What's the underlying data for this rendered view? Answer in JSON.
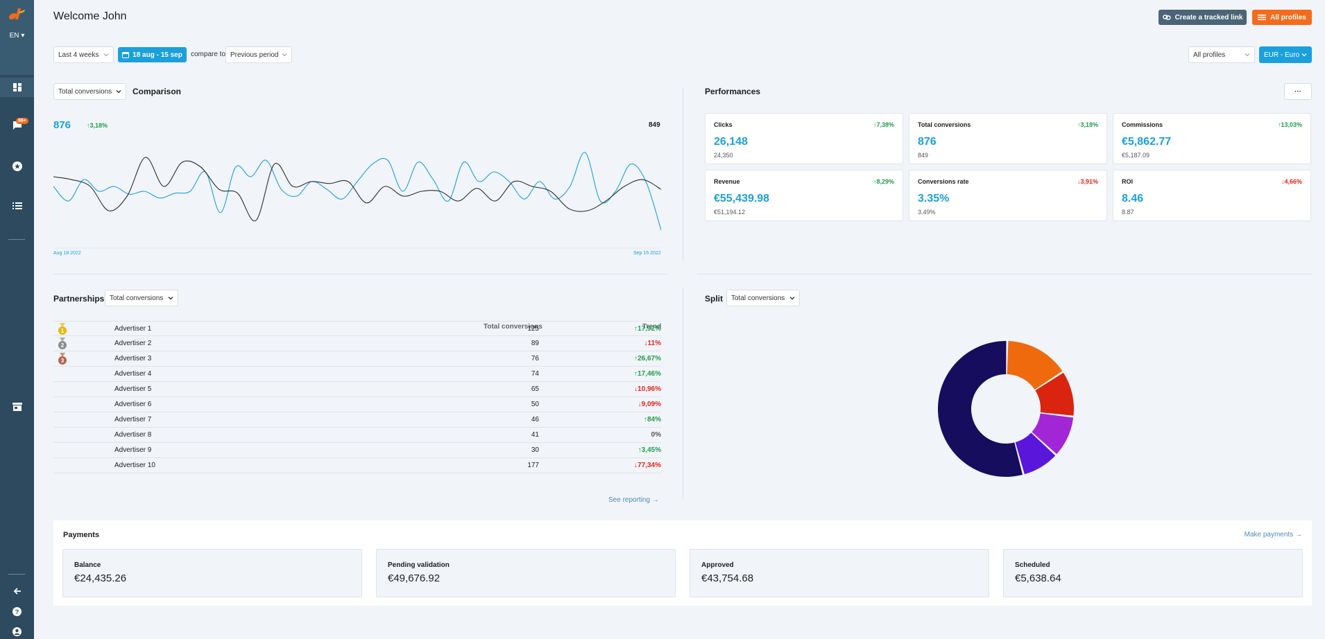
{
  "header": {
    "title": "Welcome John",
    "create_link_label": "Create a tracked link",
    "all_profiles_label": "All profiles"
  },
  "sidebar": {
    "lang": "EN",
    "badge": "99+"
  },
  "filters": {
    "period": "Last 4 weeks",
    "date_range": "18 aug - 15 sep",
    "compare_to_label": "compare to",
    "compare": "Previous period",
    "profiles": "All profiles",
    "currency": "EUR - Euro"
  },
  "comparison": {
    "metric": "Total conversions",
    "title": "Comparison",
    "current_value": "876",
    "current_trend": "↑3,18%",
    "previous_value": "849",
    "x_start": "Aug 18 2022",
    "x_end": "Sep 15 2022"
  },
  "chart_data": {
    "type": "line",
    "series": [
      {
        "color": "#1aa0dc",
        "values": [
          0.55,
          0.4,
          0.62,
          0.5,
          0.55,
          0.47,
          0.5,
          0.43,
          0.48,
          0.5,
          0.7,
          0.28,
          0.75,
          0.65,
          0.82,
          0.52,
          0.45,
          0.6,
          0.52,
          0.42,
          0.6,
          0.78,
          0.82,
          0.5,
          0.8,
          0.62,
          0.4,
          0.8,
          0.6,
          0.7,
          0.6,
          0.42,
          0.6,
          0.42,
          0.55,
          0.9,
          0.4,
          0.5,
          0.78,
          0.6,
          0.1
        ]
      },
      {
        "color": "#2d2d2d",
        "values": [
          0.65,
          0.62,
          0.55,
          0.3,
          0.45,
          0.85,
          0.55,
          0.8,
          0.75,
          0.52,
          0.48,
          0.2,
          0.78,
          0.55,
          0.6,
          0.58,
          0.6,
          0.38,
          0.55,
          0.45,
          0.5,
          0.5,
          0.4,
          0.53,
          0.4,
          0.6,
          0.55,
          0.5,
          0.32,
          0.3,
          0.4,
          0.55,
          0.62,
          0.52
        ]
      }
    ]
  },
  "performances": {
    "title": "Performances",
    "more_label": "···",
    "cards": [
      {
        "title": "Clicks",
        "trend": "↑7,38%",
        "dir": "up",
        "value": "26,148",
        "prev": "24,350"
      },
      {
        "title": "Total conversions",
        "trend": "↑3,18%",
        "dir": "up",
        "value": "876",
        "prev": "849"
      },
      {
        "title": "Commissions",
        "trend": "↑13,03%",
        "dir": "up",
        "value": "€5,862.77",
        "prev": "€5,187.09"
      },
      {
        "title": "Revenue",
        "trend": "↑8,29%",
        "dir": "up",
        "value": "€55,439.98",
        "prev": "€51,194.12"
      },
      {
        "title": "Conversions rate",
        "trend": "↓3,91%",
        "dir": "down",
        "value": "3.35%",
        "prev": "3.49%"
      },
      {
        "title": "ROI",
        "trend": "↓4,66%",
        "dir": "down",
        "value": "8.46",
        "prev": "8.87"
      }
    ]
  },
  "partnerships": {
    "title": "Partnerships",
    "metric": "Total conversions",
    "col_value": "Total conversions",
    "col_trend": "Trend",
    "rows": [
      {
        "name": "Advertiser 1",
        "value": "125",
        "trend": "↑17,92%",
        "dir": "up",
        "medal": "#e7b90f"
      },
      {
        "name": "Advertiser 2",
        "value": "89",
        "trend": "↓11%",
        "dir": "down",
        "medal": "#8c8c8c"
      },
      {
        "name": "Advertiser 3",
        "value": "76",
        "trend": "↑26,67%",
        "dir": "up",
        "medal": "#b5644a"
      },
      {
        "name": "Advertiser 4",
        "value": "74",
        "trend": "↑17,46%",
        "dir": "up",
        "medal": ""
      },
      {
        "name": "Advertiser 5",
        "value": "65",
        "trend": "↓10,96%",
        "dir": "down",
        "medal": ""
      },
      {
        "name": "Advertiser 6",
        "value": "50",
        "trend": "↓9,09%",
        "dir": "down",
        "medal": ""
      },
      {
        "name": "Advertiser 7",
        "value": "46",
        "trend": "↑84%",
        "dir": "up",
        "medal": ""
      },
      {
        "name": "Advertiser 8",
        "value": "41",
        "trend": "0%",
        "dir": "flat",
        "medal": ""
      },
      {
        "name": "Advertiser 9",
        "value": "30",
        "trend": "↑3,45%",
        "dir": "up",
        "medal": ""
      },
      {
        "name": "Advertiser 10",
        "value": "177",
        "trend": "↓77,34%",
        "dir": "down",
        "medal": ""
      }
    ],
    "see_reporting": "See reporting"
  },
  "split": {
    "title": "Split",
    "metric": "Total conversions",
    "slices": [
      {
        "value": 0.155,
        "color": "#ef6a0c"
      },
      {
        "value": 0.11,
        "color": "#d9240f"
      },
      {
        "value": 0.1,
        "color": "#a226d6"
      },
      {
        "value": 0.09,
        "color": "#5b16db"
      },
      {
        "value": 0.545,
        "color": "#160d5e"
      }
    ]
  },
  "payments": {
    "title": "Payments",
    "make_payments": "Make payments",
    "cards": [
      {
        "label": "Balance",
        "value": "€24,435.26"
      },
      {
        "label": "Pending validation",
        "value": "€49,676.92"
      },
      {
        "label": "Approved",
        "value": "€43,754.68"
      },
      {
        "label": "Scheduled",
        "value": "€5,638.64"
      }
    ]
  }
}
